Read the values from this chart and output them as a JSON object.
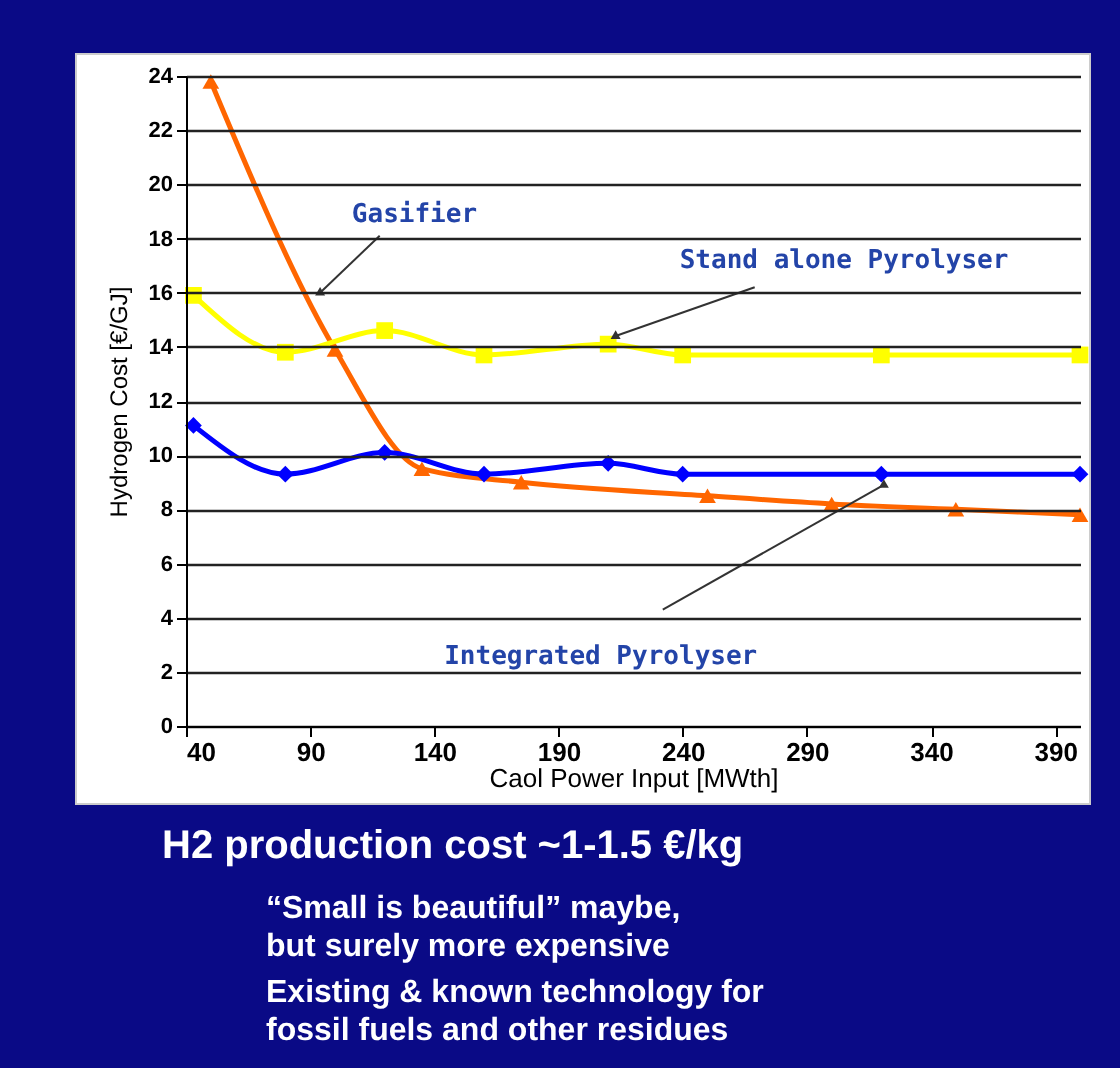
{
  "chart_data": {
    "type": "line",
    "xlabel": "Caol Power Input  [MWth]",
    "ylabel": "Hydrogen Cost [€/GJ]",
    "xlim": [
      40,
      400
    ],
    "xticks": [
      40,
      90,
      140,
      190,
      240,
      290,
      340,
      390
    ],
    "ylim": [
      0,
      24
    ],
    "yticks": [
      0,
      2,
      4,
      6,
      8,
      10,
      12,
      14,
      16,
      18,
      20,
      22,
      24
    ],
    "grid": "y",
    "legend": false,
    "series": [
      {
        "name": "Gasifier",
        "color": "#ff6600",
        "marker": "triangle",
        "x": [
          50,
          100,
          135,
          175,
          250,
          300,
          350,
          400
        ],
        "values": [
          23.8,
          13.9,
          9.5,
          9.0,
          8.5,
          8.2,
          8.0,
          7.8
        ]
      },
      {
        "name": "Stand alone Pyrolyser",
        "color": "#ffff00",
        "marker": "square",
        "x": [
          43,
          80,
          120,
          160,
          210,
          240,
          320,
          400
        ],
        "values": [
          15.9,
          13.8,
          14.6,
          13.7,
          14.1,
          13.7,
          13.7,
          13.7
        ]
      },
      {
        "name": "Integrated Pyrolyser",
        "color": "#0000ff",
        "marker": "diamond",
        "x": [
          43,
          80,
          120,
          160,
          210,
          240,
          320,
          400
        ],
        "values": [
          11.1,
          9.3,
          10.1,
          9.3,
          9.7,
          9.3,
          9.3,
          9.3
        ]
      }
    ],
    "annotations": [
      "H2 production cost ~1-1.5 €/kg",
      "“Small is beautiful” maybe,\nbut surely more expensive",
      "Existing & known technology for\nfossil fuels and other residues"
    ]
  }
}
